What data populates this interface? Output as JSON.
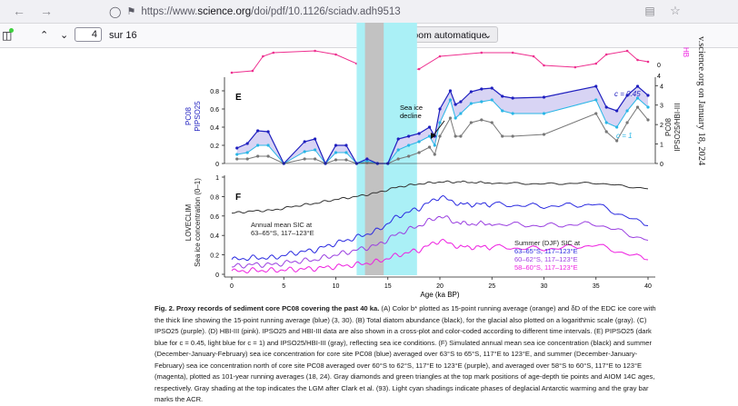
{
  "browser": {
    "url_prefix": "https://www.",
    "url_host": "science.org",
    "url_rest": "/doi/pdf/10.1126/sciadv.adh9513",
    "back_icon": "arrow-left-icon",
    "forward_icon": "arrow-right-icon"
  },
  "pdf_toolbar": {
    "page_current": "4",
    "page_total": "sur 16",
    "zoom_label": "Zoom automatique",
    "minus": "—",
    "plus": "+"
  },
  "side_text": "v.science.org on January 18, 2024",
  "panels": {
    "e_label": "E",
    "f_label": "F",
    "e_left_ylabel_1": "PC08",
    "e_left_ylabel_2": "PIPSO25",
    "e_right_ylabel_1": "PC08",
    "e_right_ylabel_2": "IPSO25/HBI-III",
    "f_ylabel_1": "LOVECLIM",
    "f_ylabel_2": "Sea ice concentration (0–1)",
    "sea_ice_decline_1": "Sea ice",
    "sea_ice_decline_2": "decline",
    "c045": "c = 0.45",
    "c1": "c = 1",
    "annual_1": "Annual mean SIC at",
    "annual_2": "63–65°S, 117–123°E",
    "summer_1": "Summer (DJF) SIC at",
    "summer_2": "63–65°S, 117–123°E",
    "summer_3": "60–62°S, 117–123°E",
    "summer_4": "58–60°S, 117–123°E",
    "xlabel": "Age (ka BP)",
    "hbi_top": "HB"
  },
  "chart_data": {
    "type": "line",
    "xlabel": "Age (ka BP)",
    "xlim": [
      0,
      40
    ],
    "xticks": [
      0,
      5,
      10,
      15,
      20,
      25,
      30,
      35,
      40
    ],
    "e_left_yticks": [
      "0",
      "0.2",
      "0.4",
      "0.6",
      "0.8"
    ],
    "e_right_yticks": [
      "0",
      "1",
      "2",
      "3",
      "4"
    ],
    "f_yticks": [
      "0",
      "0.2",
      "0.4",
      "0.6",
      "0.8",
      "1"
    ],
    "top_right_ticks": [
      "0",
      "4"
    ],
    "shading": {
      "cyan": [
        [
          12,
          14.5
        ],
        [
          14.5,
          17.8
        ]
      ],
      "gray": [
        [
          12.8,
          14.6
        ]
      ]
    },
    "series": [
      {
        "color": "#1f1fbf",
        "x": [
          0.5,
          1.5,
          2.5,
          3.5,
          5,
          7,
          8,
          9,
          10,
          11,
          12,
          13,
          14,
          15,
          16,
          17,
          18,
          19,
          19.5,
          20,
          21,
          21.5,
          22,
          23,
          24,
          25,
          26,
          27,
          30,
          35,
          36,
          37,
          38,
          39,
          40
        ],
        "y": [
          0.17,
          0.22,
          0.36,
          0.35,
          0.0,
          0.24,
          0.27,
          0.0,
          0.2,
          0.2,
          0.0,
          0.05,
          0.0,
          0.0,
          0.27,
          0.3,
          0.33,
          0.4,
          0.3,
          0.6,
          0.8,
          0.65,
          0.68,
          0.79,
          0.82,
          0.83,
          0.74,
          0.72,
          0.73,
          0.85,
          0.62,
          0.58,
          0.75,
          0.85,
          0.75
        ]
      },
      {
        "color": "#29b6e6",
        "x": [
          0.5,
          1.5,
          2.5,
          3.5,
          5,
          7,
          8,
          9,
          10,
          11,
          12,
          13,
          14,
          15,
          16,
          17,
          18,
          19,
          19.5,
          20,
          21,
          21.5,
          22,
          23,
          24,
          25,
          26,
          27,
          30,
          35,
          36,
          37,
          38,
          39,
          40
        ],
        "y": [
          0.1,
          0.12,
          0.2,
          0.2,
          0.0,
          0.13,
          0.15,
          0.0,
          0.12,
          0.12,
          0.0,
          0.03,
          0.0,
          0.0,
          0.15,
          0.2,
          0.24,
          0.3,
          0.2,
          0.45,
          0.7,
          0.5,
          0.55,
          0.66,
          0.68,
          0.7,
          0.58,
          0.55,
          0.55,
          0.7,
          0.45,
          0.4,
          0.58,
          0.72,
          0.62
        ]
      },
      {
        "color": "#777777",
        "x": [
          0.5,
          1.5,
          2.5,
          3.5,
          5,
          7,
          8,
          9,
          10,
          11,
          12,
          13,
          14,
          15,
          16,
          17,
          18,
          19,
          19.5,
          20,
          21,
          21.5,
          22,
          23,
          24,
          25,
          26,
          27,
          30,
          35,
          36,
          37,
          38,
          39,
          40
        ],
        "y": [
          0.05,
          0.05,
          0.08,
          0.08,
          0.0,
          0.05,
          0.05,
          0.0,
          0.04,
          0.04,
          0.0,
          0.01,
          0.0,
          0.0,
          0.05,
          0.08,
          0.12,
          0.18,
          0.1,
          0.3,
          0.5,
          0.3,
          0.3,
          0.45,
          0.48,
          0.45,
          0.3,
          0.3,
          0.32,
          0.55,
          0.35,
          0.25,
          0.45,
          0.62,
          0.48
        ]
      },
      {
        "name": "Annual mean SIC at 63–65°S, 117–123°E",
        "color": "#333333",
        "x": [
          0,
          2,
          4,
          6,
          8,
          10,
          12,
          14,
          16,
          18,
          20,
          22,
          25,
          30,
          35,
          40
        ],
        "y": [
          0.63,
          0.65,
          0.66,
          0.7,
          0.73,
          0.77,
          0.8,
          0.84,
          0.9,
          0.93,
          0.95,
          0.95,
          0.94,
          0.93,
          0.94,
          0.88
        ]
      },
      {
        "name": "63–65°S, 117–123°E",
        "color": "#2a2ae0",
        "x": [
          0,
          2,
          4,
          6,
          8,
          10,
          12,
          14,
          16,
          18,
          20,
          22,
          25,
          30,
          35,
          40
        ],
        "y": [
          0.15,
          0.17,
          0.17,
          0.22,
          0.25,
          0.32,
          0.38,
          0.45,
          0.6,
          0.68,
          0.8,
          0.72,
          0.72,
          0.7,
          0.72,
          0.5
        ]
      },
      {
        "name": "60–62°S, 117–123°E",
        "color": "#9a3fe0",
        "x": [
          0,
          2,
          4,
          6,
          8,
          10,
          12,
          14,
          16,
          18,
          20,
          22,
          25,
          30,
          35,
          40
        ],
        "y": [
          0.08,
          0.1,
          0.1,
          0.13,
          0.15,
          0.2,
          0.25,
          0.3,
          0.42,
          0.5,
          0.6,
          0.52,
          0.52,
          0.5,
          0.52,
          0.35
        ]
      },
      {
        "name": "58–60°S, 117–123°E",
        "color": "#ee1fe0",
        "x": [
          0,
          2,
          4,
          6,
          8,
          10,
          12,
          14,
          16,
          18,
          20,
          22,
          25,
          30,
          35,
          40
        ],
        "y": [
          0.03,
          0.04,
          0.04,
          0.05,
          0.06,
          0.08,
          0.1,
          0.13,
          0.2,
          0.25,
          0.35,
          0.28,
          0.28,
          0.26,
          0.3,
          0.15
        ]
      }
    ]
  },
  "caption": {
    "bold": "Fig. 2. Proxy records of sediment core PC08 covering the past 40 ka.",
    "text": " (A) Color b* plotted as 15-point running average (orange) and δD of the EDC ice core with the thick line showing the 15-point running average (blue) (3, 30). (B) Total diatom abundance (black), for the glacial also plotted on a logarithmic scale (gray). (C) IPSO25 (purple). (D) HBI-III (pink). IPSO25 and HBI-III data are also shown in a cross-plot and color-coded according to different time intervals. (E) PIPSO25 (dark blue for c = 0.45, light blue for c = 1) and IPSO25/HBI-III (gray), reflecting sea ice conditions. (F) Simulated annual mean sea ice concentration (black) and summer (December-January-February) sea ice concentration for core site PC08 (blue) averaged over 63°S to 65°S, 117°E to 123°E, and summer (December-January-February) sea ice concentration north of core site PC08 averaged over 60°S to 62°S, 117°E to 123°E (purple), and averaged over 58°S to 60°S, 117°E to 123°E (magenta), plotted as 101-year running averages (18, 24). Gray diamonds and green triangles at the top mark positions of age-depth tie points and AIOM 14C ages, respectively. Gray shading at the top indicates the LGM after Clark et al. (93). Light cyan shadings indicate phases of deglacial Antarctic warming and the gray bar marks the ACR."
  }
}
